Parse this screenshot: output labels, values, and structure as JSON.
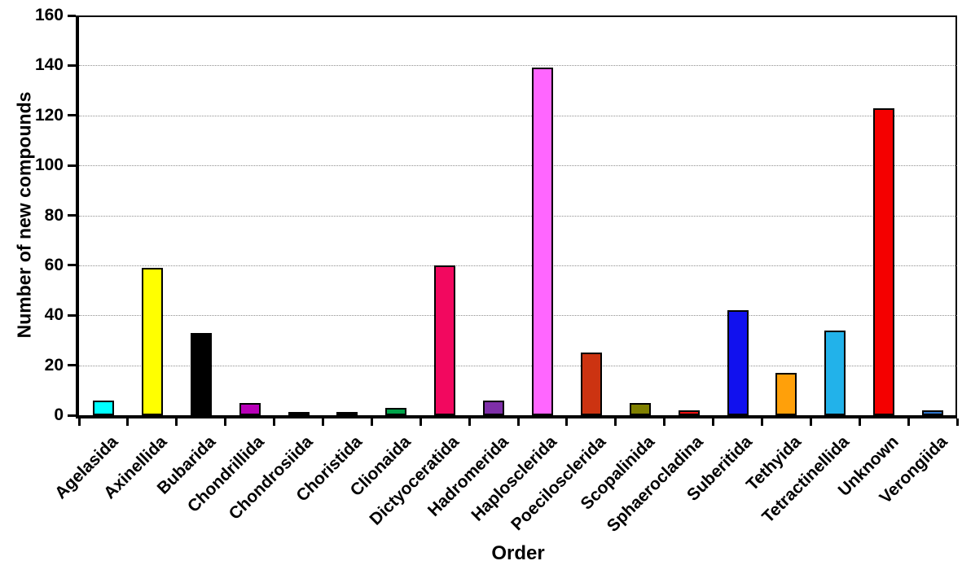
{
  "chart_data": {
    "type": "bar",
    "title": "",
    "xlabel": "Order",
    "ylabel": "Number of new compounds",
    "ylim": [
      0,
      160
    ],
    "yticks": [
      0,
      20,
      40,
      60,
      80,
      100,
      120,
      140,
      160
    ],
    "grid": "horizontal-dotted",
    "legend": "none",
    "categories": [
      "Agelasida",
      "Axinellida",
      "Bubarida",
      "Chondrillida",
      "Chondrosiida",
      "Choristida",
      "Clionaida",
      "Dictyoceratida",
      "Hadromerida",
      "Haplosclerida",
      "Poecilosclerida",
      "Scopalinida",
      "Sphaerocladina",
      "Suberitida",
      "Tethyida",
      "Tetractinellida",
      "Unknown",
      "Verongiida"
    ],
    "values": [
      6,
      59,
      33,
      5,
      1,
      1,
      3,
      60,
      6,
      139,
      25,
      5,
      2,
      42,
      17,
      34,
      123,
      2
    ],
    "bar_colors": [
      "#00FFFF",
      "#FFFF00",
      "#000000",
      "#B800B8",
      "#0D6B8D",
      "#5E1E1E",
      "#00A34A",
      "#F2085F",
      "#7E2FA8",
      "#FF66FF",
      "#CC3311",
      "#808000",
      "#EE1111",
      "#1111EE",
      "#FFA00A",
      "#22B2EA",
      "#F40000",
      "#2E75CC"
    ]
  }
}
